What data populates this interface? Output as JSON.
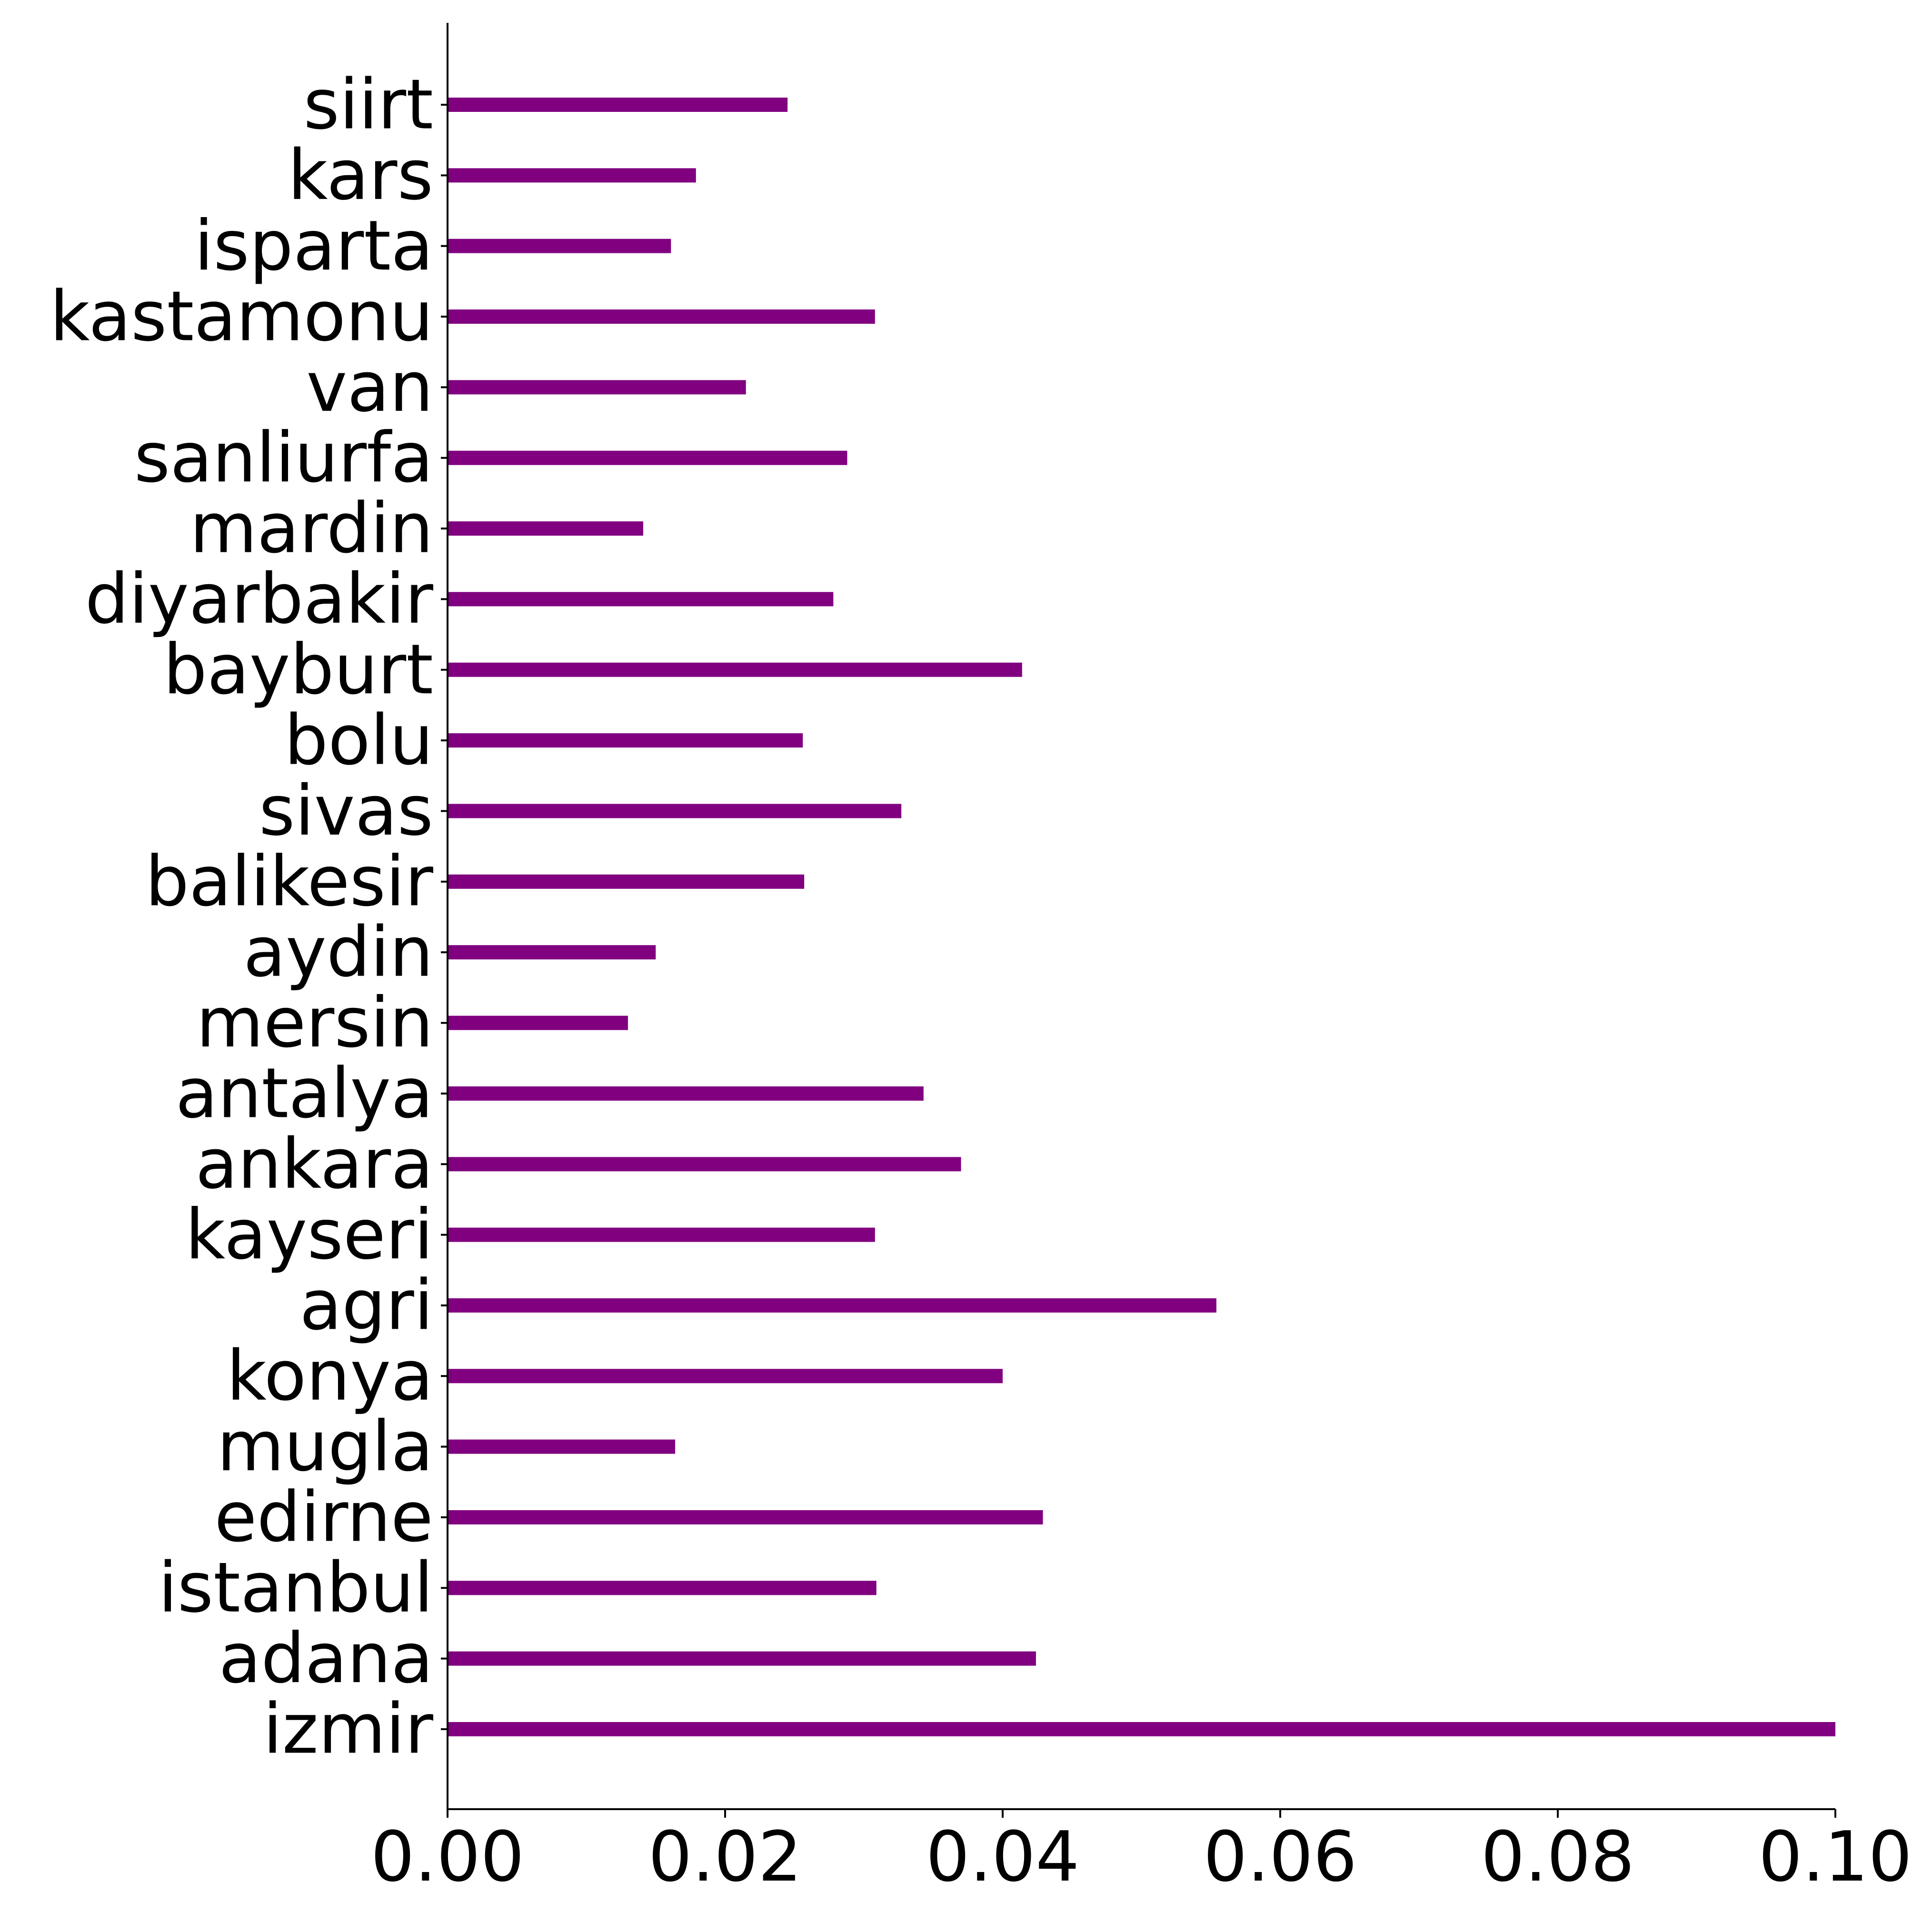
{
  "chart_data": {
    "type": "bar",
    "orientation": "horizontal",
    "title": "",
    "xlabel": "",
    "ylabel": "",
    "xlim": [
      0,
      0.1
    ],
    "x_ticks": [
      "0.00",
      "0.02",
      "0.04",
      "0.06",
      "0.08",
      "0.10"
    ],
    "x_tick_values": [
      0,
      0.02,
      0.04,
      0.06,
      0.08,
      0.1
    ],
    "grid": false,
    "legend": "none",
    "bar_color": "#800080",
    "categories": [
      "izmir",
      "adana",
      "istanbul",
      "edirne",
      "mugla",
      "konya",
      "agri",
      "kayseri",
      "ankara",
      "antalya",
      "mersin",
      "aydin",
      "balikesir",
      "sivas",
      "bolu",
      "bayburt",
      "diyarbakir",
      "mardin",
      "sanliurfa",
      "van",
      "kastamonu",
      "isparta",
      "kars",
      "siirt"
    ],
    "values": [
      0.1,
      0.0424,
      0.0309,
      0.0429,
      0.0164,
      0.04,
      0.0554,
      0.0308,
      0.037,
      0.0343,
      0.013,
      0.015,
      0.0257,
      0.0327,
      0.0256,
      0.0414,
      0.0278,
      0.0141,
      0.0288,
      0.0215,
      0.0308,
      0.0161,
      0.0179,
      0.0245
    ]
  }
}
